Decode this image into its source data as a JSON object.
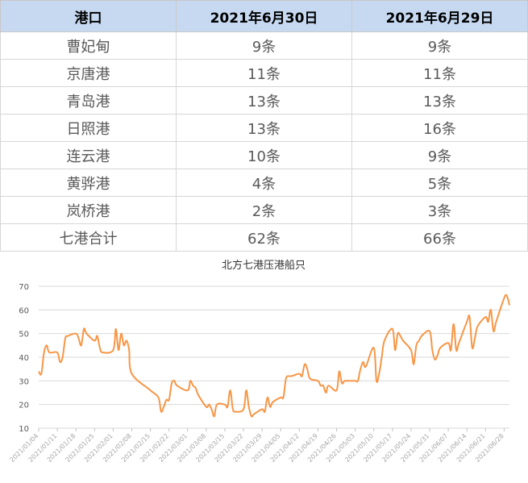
{
  "table": {
    "headers": [
      "港口",
      "2021年6月30日",
      "2021年6月29日"
    ],
    "rows": [
      [
        "曹妃甸",
        "9条",
        "9条"
      ],
      [
        "京唐港",
        "11条",
        "11条"
      ],
      [
        "青岛港",
        "13条",
        "13条"
      ],
      [
        "日照港",
        "13条",
        "16条"
      ],
      [
        "连云港",
        "10条",
        "9条"
      ],
      [
        "黄骅港",
        "4条",
        "5条"
      ],
      [
        "岚桥港",
        "2条",
        "3条"
      ],
      [
        "七港合计",
        "62条",
        "66条"
      ]
    ]
  },
  "chart_data": {
    "type": "line",
    "title": "北方七港压港船只",
    "xlabel": "",
    "ylabel": "",
    "ylim": [
      10,
      70
    ],
    "yticks": [
      10,
      20,
      30,
      40,
      50,
      60,
      70
    ],
    "xlim": [
      "2021/01/04",
      "2021/06/30"
    ],
    "xticks": [
      "2021/01/04",
      "2021/01/11",
      "2021/01/18",
      "2021/01/25",
      "2021/02/01",
      "2021/02/08",
      "2021/02/15",
      "2021/02/22",
      "2021/03/01",
      "2021/03/08",
      "2021/03/15",
      "2021/03/22",
      "2021/03/29",
      "2021/04/05",
      "2021/04/12",
      "2021/04/19",
      "2021/04/26",
      "2021/05/03",
      "2021/05/10",
      "2021/05/17",
      "2021/05/24",
      "2021/05/31",
      "2021/06/07",
      "2021/06/14",
      "2021/06/21",
      "2021/06/28"
    ],
    "grid": true,
    "series": [
      {
        "color": "#f79646",
        "points": [
          [
            "2021/01/04",
            34
          ],
          [
            "2021/01/05",
            33
          ],
          [
            "2021/01/06",
            42
          ],
          [
            "2021/01/07",
            45
          ],
          [
            "2021/01/08",
            42
          ],
          [
            "2021/01/11",
            42
          ],
          [
            "2021/01/12",
            38
          ],
          [
            "2021/01/13",
            40
          ],
          [
            "2021/01/14",
            48
          ],
          [
            "2021/01/15",
            49
          ],
          [
            "2021/01/18",
            50
          ],
          [
            "2021/01/19",
            48
          ],
          [
            "2021/01/20",
            45
          ],
          [
            "2021/01/21",
            52
          ],
          [
            "2021/01/22",
            50
          ],
          [
            "2021/01/25",
            47
          ],
          [
            "2021/01/26",
            49
          ],
          [
            "2021/01/27",
            44
          ],
          [
            "2021/01/28",
            42
          ],
          [
            "2021/02/01",
            43
          ],
          [
            "2021/02/02",
            52
          ],
          [
            "2021/02/03",
            43
          ],
          [
            "2021/02/04",
            50
          ],
          [
            "2021/02/05",
            45
          ],
          [
            "2021/02/06",
            47
          ],
          [
            "2021/02/07",
            43
          ],
          [
            "2021/02/08",
            33
          ],
          [
            "2021/02/15",
            26
          ],
          [
            "2021/02/18",
            23
          ],
          [
            "2021/02/19",
            17
          ],
          [
            "2021/02/20",
            19
          ],
          [
            "2021/02/21",
            22
          ],
          [
            "2021/02/22",
            22
          ],
          [
            "2021/02/23",
            29
          ],
          [
            "2021/02/24",
            30
          ],
          [
            "2021/02/25",
            28
          ],
          [
            "2021/03/01",
            26
          ],
          [
            "2021/03/02",
            30
          ],
          [
            "2021/03/03",
            28
          ],
          [
            "2021/03/04",
            27
          ],
          [
            "2021/03/05",
            24
          ],
          [
            "2021/03/08",
            19
          ],
          [
            "2021/03/09",
            20
          ],
          [
            "2021/03/10",
            18
          ],
          [
            "2021/03/11",
            15
          ],
          [
            "2021/03/12",
            20
          ],
          [
            "2021/03/15",
            20
          ],
          [
            "2021/03/16",
            19
          ],
          [
            "2021/03/17",
            26
          ],
          [
            "2021/03/18",
            18
          ],
          [
            "2021/03/19",
            17
          ],
          [
            "2021/03/22",
            18
          ],
          [
            "2021/03/23",
            26
          ],
          [
            "2021/03/24",
            19
          ],
          [
            "2021/03/25",
            15
          ],
          [
            "2021/03/26",
            16
          ],
          [
            "2021/03/29",
            18
          ],
          [
            "2021/03/30",
            17
          ],
          [
            "2021/03/31",
            23
          ],
          [
            "2021/04/01",
            19
          ],
          [
            "2021/04/02",
            21
          ],
          [
            "2021/04/05",
            23
          ],
          [
            "2021/04/06",
            23
          ],
          [
            "2021/04/07",
            31
          ],
          [
            "2021/04/08",
            32
          ],
          [
            "2021/04/09",
            32
          ],
          [
            "2021/04/12",
            33
          ],
          [
            "2021/04/13",
            32
          ],
          [
            "2021/04/14",
            37
          ],
          [
            "2021/04/15",
            35
          ],
          [
            "2021/04/16",
            31
          ],
          [
            "2021/04/19",
            30
          ],
          [
            "2021/04/20",
            28
          ],
          [
            "2021/04/21",
            28
          ],
          [
            "2021/04/22",
            25
          ],
          [
            "2021/04/23",
            28
          ],
          [
            "2021/04/26",
            26
          ],
          [
            "2021/04/27",
            34
          ],
          [
            "2021/04/28",
            29
          ],
          [
            "2021/04/29",
            30
          ],
          [
            "2021/04/30",
            30
          ],
          [
            "2021/05/03",
            30
          ],
          [
            "2021/05/04",
            30
          ],
          [
            "2021/05/05",
            35
          ],
          [
            "2021/05/06",
            38
          ],
          [
            "2021/05/07",
            36
          ],
          [
            "2021/05/10",
            44
          ],
          [
            "2021/05/11",
            30
          ],
          [
            "2021/05/12",
            33
          ],
          [
            "2021/05/13",
            40
          ],
          [
            "2021/05/14",
            47
          ],
          [
            "2021/05/17",
            52
          ],
          [
            "2021/05/18",
            43
          ],
          [
            "2021/05/19",
            50
          ],
          [
            "2021/05/20",
            49
          ],
          [
            "2021/05/21",
            47
          ],
          [
            "2021/05/24",
            43
          ],
          [
            "2021/05/25",
            37
          ],
          [
            "2021/05/26",
            45
          ],
          [
            "2021/05/27",
            47
          ],
          [
            "2021/05/28",
            49
          ],
          [
            "2021/05/31",
            51
          ],
          [
            "2021/06/01",
            43
          ],
          [
            "2021/06/02",
            39
          ],
          [
            "2021/06/03",
            41
          ],
          [
            "2021/06/04",
            44
          ],
          [
            "2021/06/07",
            46
          ],
          [
            "2021/06/08",
            43
          ],
          [
            "2021/06/09",
            54
          ],
          [
            "2021/06/10",
            43
          ],
          [
            "2021/06/11",
            46
          ],
          [
            "2021/06/14",
            55
          ],
          [
            "2021/06/15",
            57
          ],
          [
            "2021/06/16",
            44
          ],
          [
            "2021/06/17",
            48
          ],
          [
            "2021/06/18",
            53
          ],
          [
            "2021/06/21",
            57
          ],
          [
            "2021/06/22",
            55
          ],
          [
            "2021/06/23",
            60
          ],
          [
            "2021/06/24",
            51
          ],
          [
            "2021/06/25",
            55
          ],
          [
            "2021/06/28",
            65
          ],
          [
            "2021/06/29",
            66
          ],
          [
            "2021/06/30",
            62
          ]
        ]
      }
    ]
  }
}
